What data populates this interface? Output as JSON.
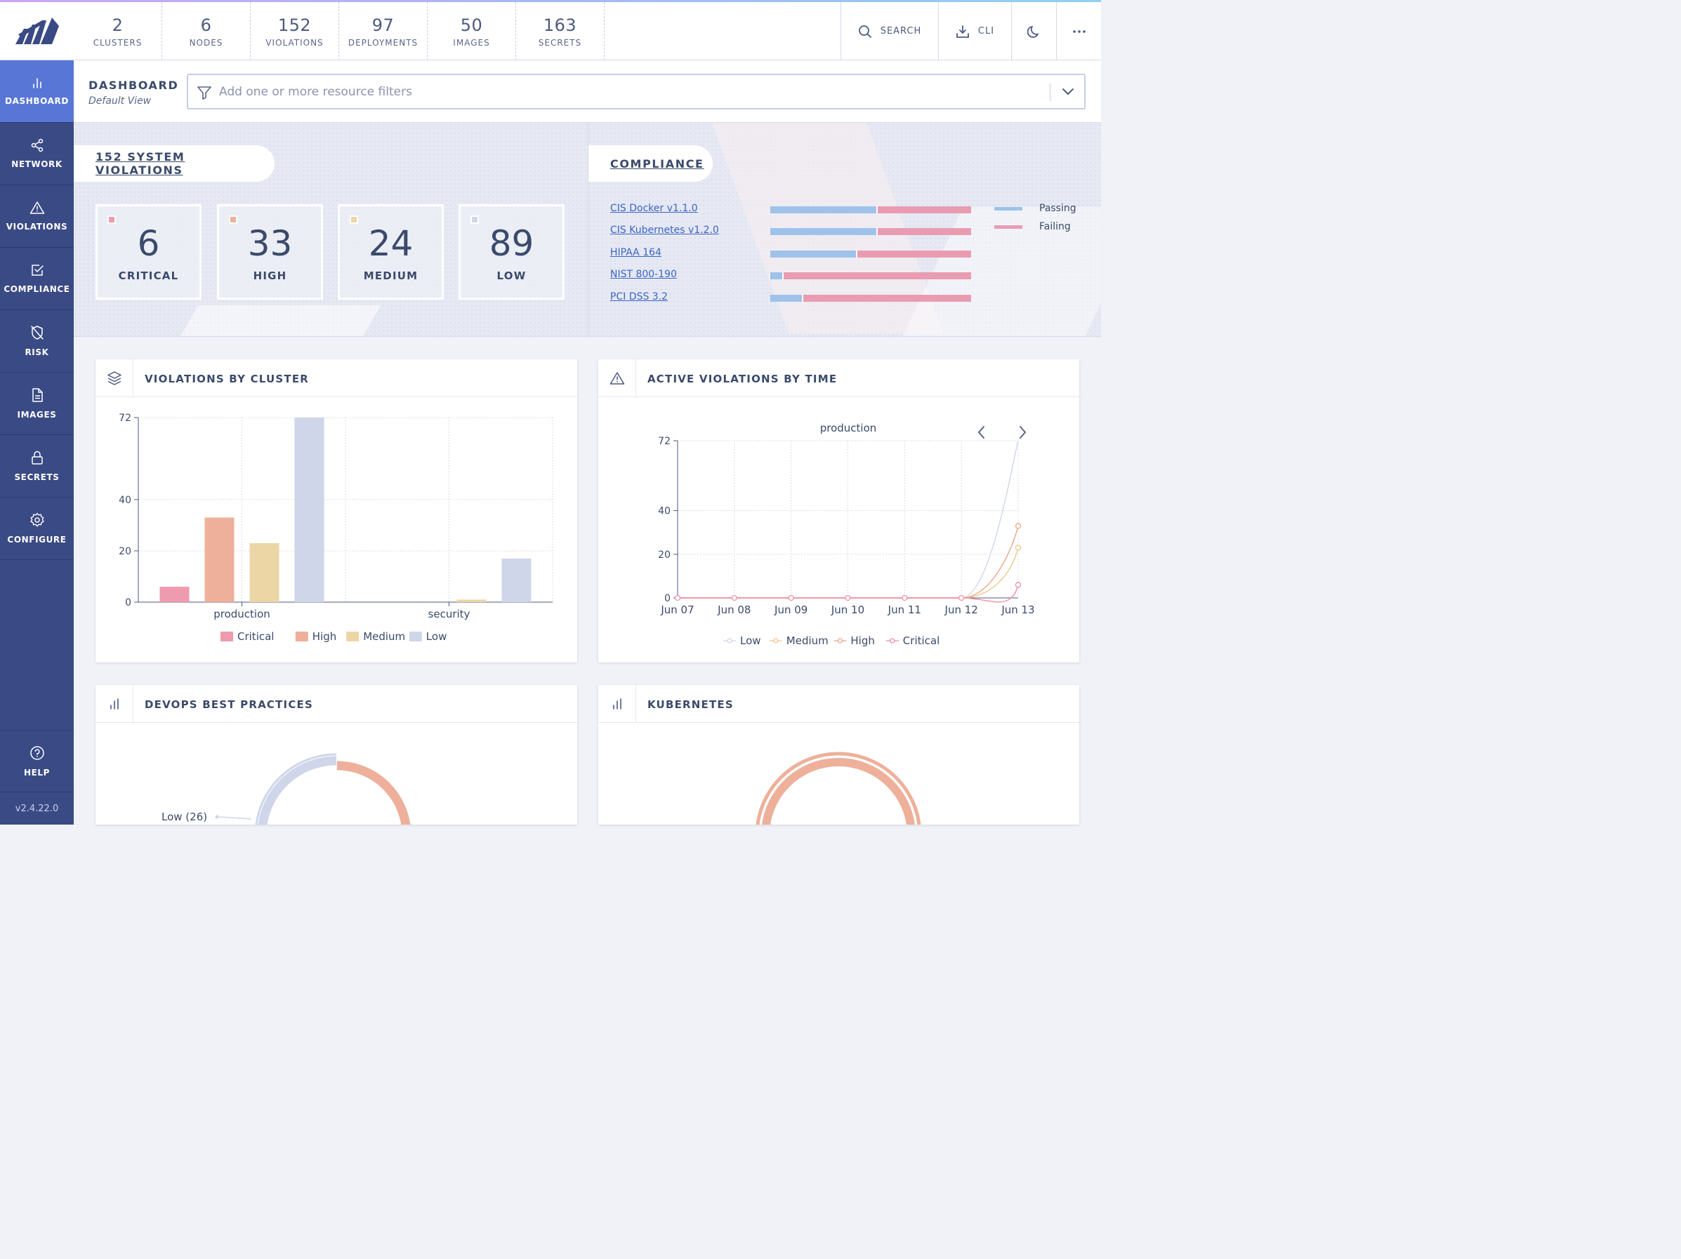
{
  "topbar": {
    "counts": [
      {
        "num": "2",
        "label": "CLUSTERS"
      },
      {
        "num": "6",
        "label": "NODES"
      },
      {
        "num": "152",
        "label": "VIOLATIONS"
      },
      {
        "num": "97",
        "label": "DEPLOYMENTS"
      },
      {
        "num": "50",
        "label": "IMAGES"
      },
      {
        "num": "163",
        "label": "SECRETS"
      }
    ],
    "search_label": "SEARCH",
    "cli_label": "CLI"
  },
  "sidebar": {
    "items": [
      {
        "label": "DASHBOARD",
        "icon": "bar-chart-icon",
        "active": true
      },
      {
        "label": "NETWORK",
        "icon": "share-nodes-icon"
      },
      {
        "label": "VIOLATIONS",
        "icon": "warning-triangle-icon"
      },
      {
        "label": "COMPLIANCE",
        "icon": "checkbox-icon"
      },
      {
        "label": "RISK",
        "icon": "shield-off-icon"
      },
      {
        "label": "IMAGES",
        "icon": "document-icon"
      },
      {
        "label": "SECRETS",
        "icon": "lock-icon"
      },
      {
        "label": "CONFIGURE",
        "icon": "gear-icon"
      }
    ],
    "help_label": "HELP",
    "version": "v2.4.22.0"
  },
  "header": {
    "title": "DASHBOARD",
    "subtitle": "Default View",
    "filter_placeholder": "Add one or more resource filters"
  },
  "violations_summary": {
    "title": "152 SYSTEM VIOLATIONS",
    "tiles": [
      {
        "count": "6",
        "label": "CRITICAL",
        "color": "#ee9aaf"
      },
      {
        "count": "33",
        "label": "HIGH",
        "color": "#eeb09a"
      },
      {
        "count": "24",
        "label": "MEDIUM",
        "color": "#ecd6a6"
      },
      {
        "count": "89",
        "label": "LOW",
        "color": "#cfd6ea"
      }
    ]
  },
  "compliance": {
    "title": "COMPLIANCE",
    "standards": [
      {
        "name": "CIS Docker v1.1.0",
        "passing": 0.535
      },
      {
        "name": "CIS Kubernetes v1.2.0",
        "passing": 0.535
      },
      {
        "name": "HIPAA 164",
        "passing": 0.435
      },
      {
        "name": "NIST 800-190",
        "passing": 0.065
      },
      {
        "name": "PCI DSS 3.2",
        "passing": 0.165
      }
    ],
    "legend": [
      {
        "label": "Passing",
        "color": "#9ec2ea"
      },
      {
        "label": "Failing",
        "color": "#e99cb1"
      }
    ]
  },
  "widgets": {
    "by_cluster_title": "VIOLATIONS BY CLUSTER",
    "by_time_title": "ACTIVE VIOLATIONS BY TIME",
    "devops_title": "DEVOPS BEST PRACTICES",
    "kubernetes_title": "KUBERNETES",
    "devops_low_label": "Low (26)"
  },
  "colors": {
    "critical": "#ee9aaf",
    "high": "#eeb09a",
    "medium": "#ecd6a6",
    "low": "#cfd6ea"
  },
  "chart_data": [
    {
      "type": "bar",
      "categories": [
        "production",
        "security"
      ],
      "series": [
        {
          "name": "Critical",
          "values": [
            6,
            0
          ]
        },
        {
          "name": "High",
          "values": [
            33,
            0
          ]
        },
        {
          "name": "Medium",
          "values": [
            23,
            1
          ]
        },
        {
          "name": "Low",
          "values": [
            72,
            17
          ]
        }
      ],
      "yticks": [
        0,
        20,
        40,
        72
      ],
      "ylim": [
        0,
        72
      ],
      "grid": true,
      "legend_position": "bottom"
    },
    {
      "type": "line",
      "title": "production",
      "x": [
        "Jun 07",
        "Jun 08",
        "Jun 09",
        "Jun 10",
        "Jun 11",
        "Jun 12",
        "Jun 13"
      ],
      "series": [
        {
          "name": "Low",
          "values": [
            0,
            0,
            0,
            0,
            0,
            0,
            72
          ]
        },
        {
          "name": "Medium",
          "values": [
            0,
            0,
            0,
            0,
            0,
            0,
            23
          ]
        },
        {
          "name": "High",
          "values": [
            0,
            0,
            0,
            0,
            0,
            0,
            33
          ]
        },
        {
          "name": "Critical",
          "values": [
            0,
            0,
            0,
            0,
            0,
            0,
            6
          ]
        }
      ],
      "yticks": [
        0,
        20,
        40,
        72
      ],
      "ylim": [
        0,
        72
      ],
      "grid": true,
      "legend_position": "bottom"
    }
  ]
}
